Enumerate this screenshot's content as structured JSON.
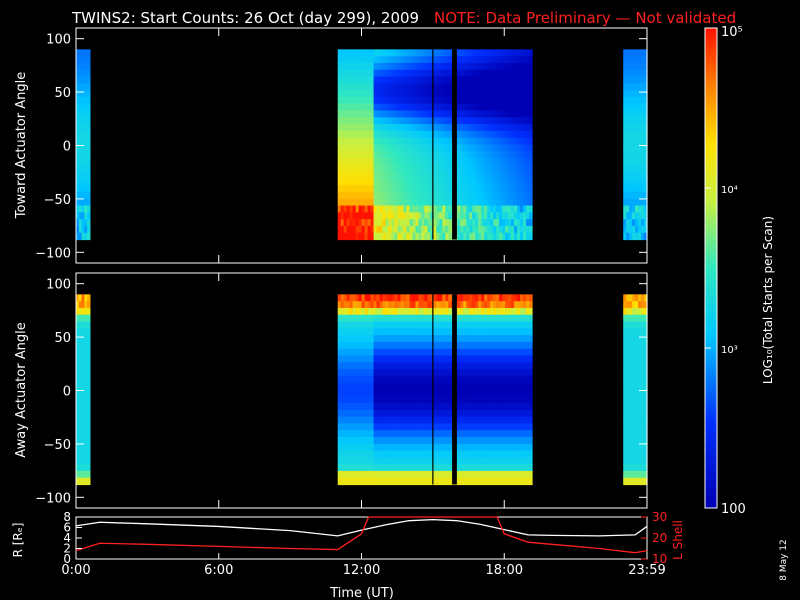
{
  "title": "TWINS2: Start Counts: 26 Oct (day 299), 2009",
  "note": "NOTE: Data Preliminary — Not validated",
  "date_stamp": "8 May 12",
  "colors": {
    "background": "#000000",
    "axis": "#ffffff",
    "note": "#ff2020",
    "r_line": "#ffffff",
    "lshell_line": "#ff2020"
  },
  "colorbar": {
    "label": "LOG₁₀(Total Starts per Scan)",
    "ticks": [
      "10⁵",
      "10⁴",
      "10³",
      "100"
    ],
    "tick_values": [
      100000,
      10000,
      1000,
      100
    ],
    "scale": "log",
    "range": [
      100,
      100000
    ],
    "colormap": "rainbow (blue→cyan→yellow→red)"
  },
  "chart_data": [
    {
      "type": "heatmap",
      "panel": "toward",
      "ylabel": "Toward Actuator Angle",
      "ylim": [
        -110,
        110
      ],
      "yticks": [
        "100",
        "50",
        "0",
        "−50",
        "−100"
      ],
      "ytick_values": [
        100,
        50,
        0,
        -50,
        -100
      ],
      "xlim_hours": [
        0,
        24
      ],
      "angle_range": [
        -88,
        90
      ],
      "coverage_intervals_ut": [
        [
          "00:00",
          "00:35"
        ],
        [
          "11:00",
          "19:10"
        ],
        [
          "23:00",
          "23:59"
        ]
      ],
      "data_gaps_ut": [
        "15:00",
        "15:52",
        "15:57"
      ],
      "description_levels": {
        "low_angle_edges": "high (red/orange)",
        "center_after_13UT": "low (blue)"
      }
    },
    {
      "type": "heatmap",
      "panel": "away",
      "ylabel": "Away Actuator Angle",
      "ylim": [
        -110,
        110
      ],
      "yticks": [
        "100",
        "50",
        "0",
        "−50",
        "−100"
      ],
      "ytick_values": [
        100,
        50,
        0,
        -50,
        -100
      ],
      "xlim_hours": [
        0,
        24
      ],
      "angle_range": [
        -88,
        90
      ],
      "coverage_intervals_ut": [
        [
          "00:00",
          "00:35"
        ],
        [
          "11:00",
          "19:10"
        ],
        [
          "23:00",
          "23:59"
        ]
      ],
      "data_gaps_ut": [
        "15:00",
        "15:52",
        "15:57"
      ]
    },
    {
      "type": "line",
      "panel": "orbit",
      "xlabel": "Time (UT)",
      "x_ticks": [
        "0:00",
        "6:00",
        "12:00",
        "18:00",
        "23:59"
      ],
      "x_tick_values": [
        0,
        6,
        12,
        18,
        24
      ],
      "left_axis": {
        "label": "R [Rₑ]",
        "ylim": [
          0,
          8
        ],
        "ticks": [
          "0",
          "2",
          "4",
          "6",
          "8"
        ],
        "tick_values": [
          0,
          2,
          4,
          6,
          8
        ]
      },
      "right_axis": {
        "label": "L Shell",
        "ylim": [
          10,
          30
        ],
        "ticks": [
          "10",
          "20",
          "30"
        ],
        "tick_values": [
          10,
          20,
          30
        ]
      },
      "series": [
        {
          "name": "R [Rₑ]",
          "axis": "left",
          "color": "#ffffff",
          "x": [
            0,
            1,
            3,
            6,
            9,
            11,
            12,
            13,
            14,
            15,
            16,
            17,
            18,
            19,
            20,
            22,
            23.5,
            24
          ],
          "y": [
            6.3,
            7.0,
            6.7,
            6.2,
            5.4,
            4.4,
            5.5,
            6.5,
            7.3,
            7.5,
            7.3,
            6.6,
            5.6,
            4.6,
            4.5,
            4.4,
            4.6,
            6.2
          ]
        },
        {
          "name": "L Shell",
          "axis": "right",
          "color": "#ff2020",
          "x": [
            0,
            1,
            3,
            6,
            9,
            11,
            12,
            12.3,
            17.7,
            18,
            19,
            20,
            22,
            23.5,
            24
          ],
          "y": [
            14,
            17.5,
            17,
            16,
            15,
            14.5,
            22,
            30,
            30,
            22,
            18,
            17,
            15,
            13,
            14
          ]
        }
      ]
    }
  ]
}
